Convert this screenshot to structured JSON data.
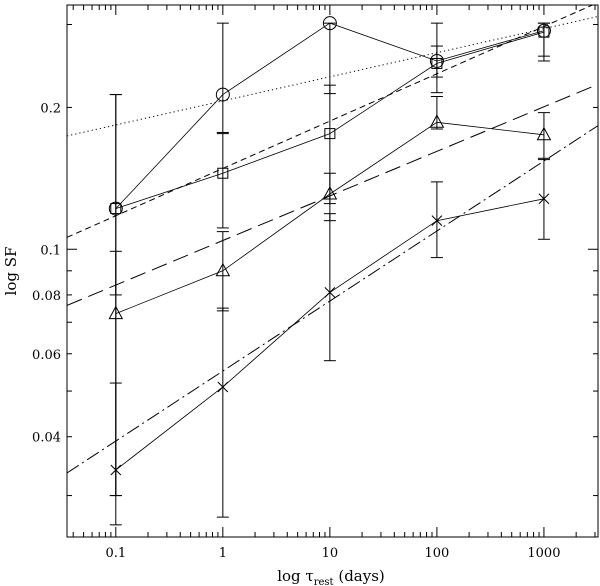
{
  "chart_data": {
    "type": "line",
    "xlabel": "log τ",
    "xlabel_sub": "rest",
    "xlabel_unit": " (days)",
    "ylabel": "log SF",
    "xscale": "log",
    "yscale": "log",
    "xlim": [
      0.035,
      3200
    ],
    "ylim": [
      0.0245,
      0.33
    ],
    "x_ticks": [
      {
        "value": 0.1,
        "label": "0.1"
      },
      {
        "value": 1,
        "label": "1"
      },
      {
        "value": 10,
        "label": "10"
      },
      {
        "value": 100,
        "label": "100"
      },
      {
        "value": 1000,
        "label": "1000"
      }
    ],
    "y_ticks": [
      {
        "value": 0.04,
        "label": "0.04"
      },
      {
        "value": 0.06,
        "label": "0.06"
      },
      {
        "value": 0.08,
        "label": "0.08"
      },
      {
        "value": 0.1,
        "label": "0.1"
      },
      {
        "value": 0.2,
        "label": "0.2"
      }
    ],
    "series": [
      {
        "marker": "circle",
        "x": [
          0.1,
          1,
          10,
          100,
          1000
        ],
        "y": [
          0.122,
          0.213,
          0.302,
          0.251,
          0.291
        ],
        "err_lo": [
          0.03,
          0.177,
          0.214,
          0.232,
          0.251
        ],
        "err_hi": [
          0.213,
          0.302,
          0.302,
          0.302,
          0.302
        ]
      },
      {
        "marker": "square",
        "x": [
          0.1,
          1,
          10,
          100,
          1000
        ],
        "y": [
          0.122,
          0.145,
          0.176,
          0.248,
          0.289
        ],
        "err_lo": [
          0.08,
          0.111,
          0.125,
          0.215,
          0.257
        ],
        "err_hi": [
          0.213,
          0.176,
          0.223,
          0.27,
          0.302
        ]
      },
      {
        "marker": "triangle",
        "x": [
          0.1,
          1,
          10,
          100,
          1000
        ],
        "y": [
          0.073,
          0.09,
          0.131,
          0.186,
          0.175
        ],
        "err_lo": [
          0.03,
          0.074,
          0.115,
          0.18,
          0.155
        ],
        "err_hi": [
          0.099,
          0.109,
          0.145,
          0.211,
          0.195
        ]
      },
      {
        "marker": "cross",
        "x": [
          0.1,
          1,
          10,
          100,
          1000
        ],
        "y": [
          0.034,
          0.051,
          0.081,
          0.115,
          0.128
        ],
        "err_lo": [
          0.026,
          0.027,
          0.058,
          0.096,
          0.105
        ],
        "err_hi": [
          0.052,
          0.075,
          0.119,
          0.139,
          0.156
        ]
      }
    ],
    "fit_lines": [
      {
        "style": "dotted",
        "x": [
          0.035,
          3200
        ],
        "y": [
          0.174,
          0.312
        ]
      },
      {
        "style": "short-dash",
        "x": [
          0.035,
          3200
        ],
        "y": [
          0.106,
          0.334
        ]
      },
      {
        "style": "long-dash",
        "x": [
          0.035,
          3200
        ],
        "y": [
          0.076,
          0.224
        ]
      },
      {
        "style": "dash-dot",
        "x": [
          0.035,
          3200
        ],
        "y": [
          0.0335,
          0.183
        ]
      }
    ]
  }
}
